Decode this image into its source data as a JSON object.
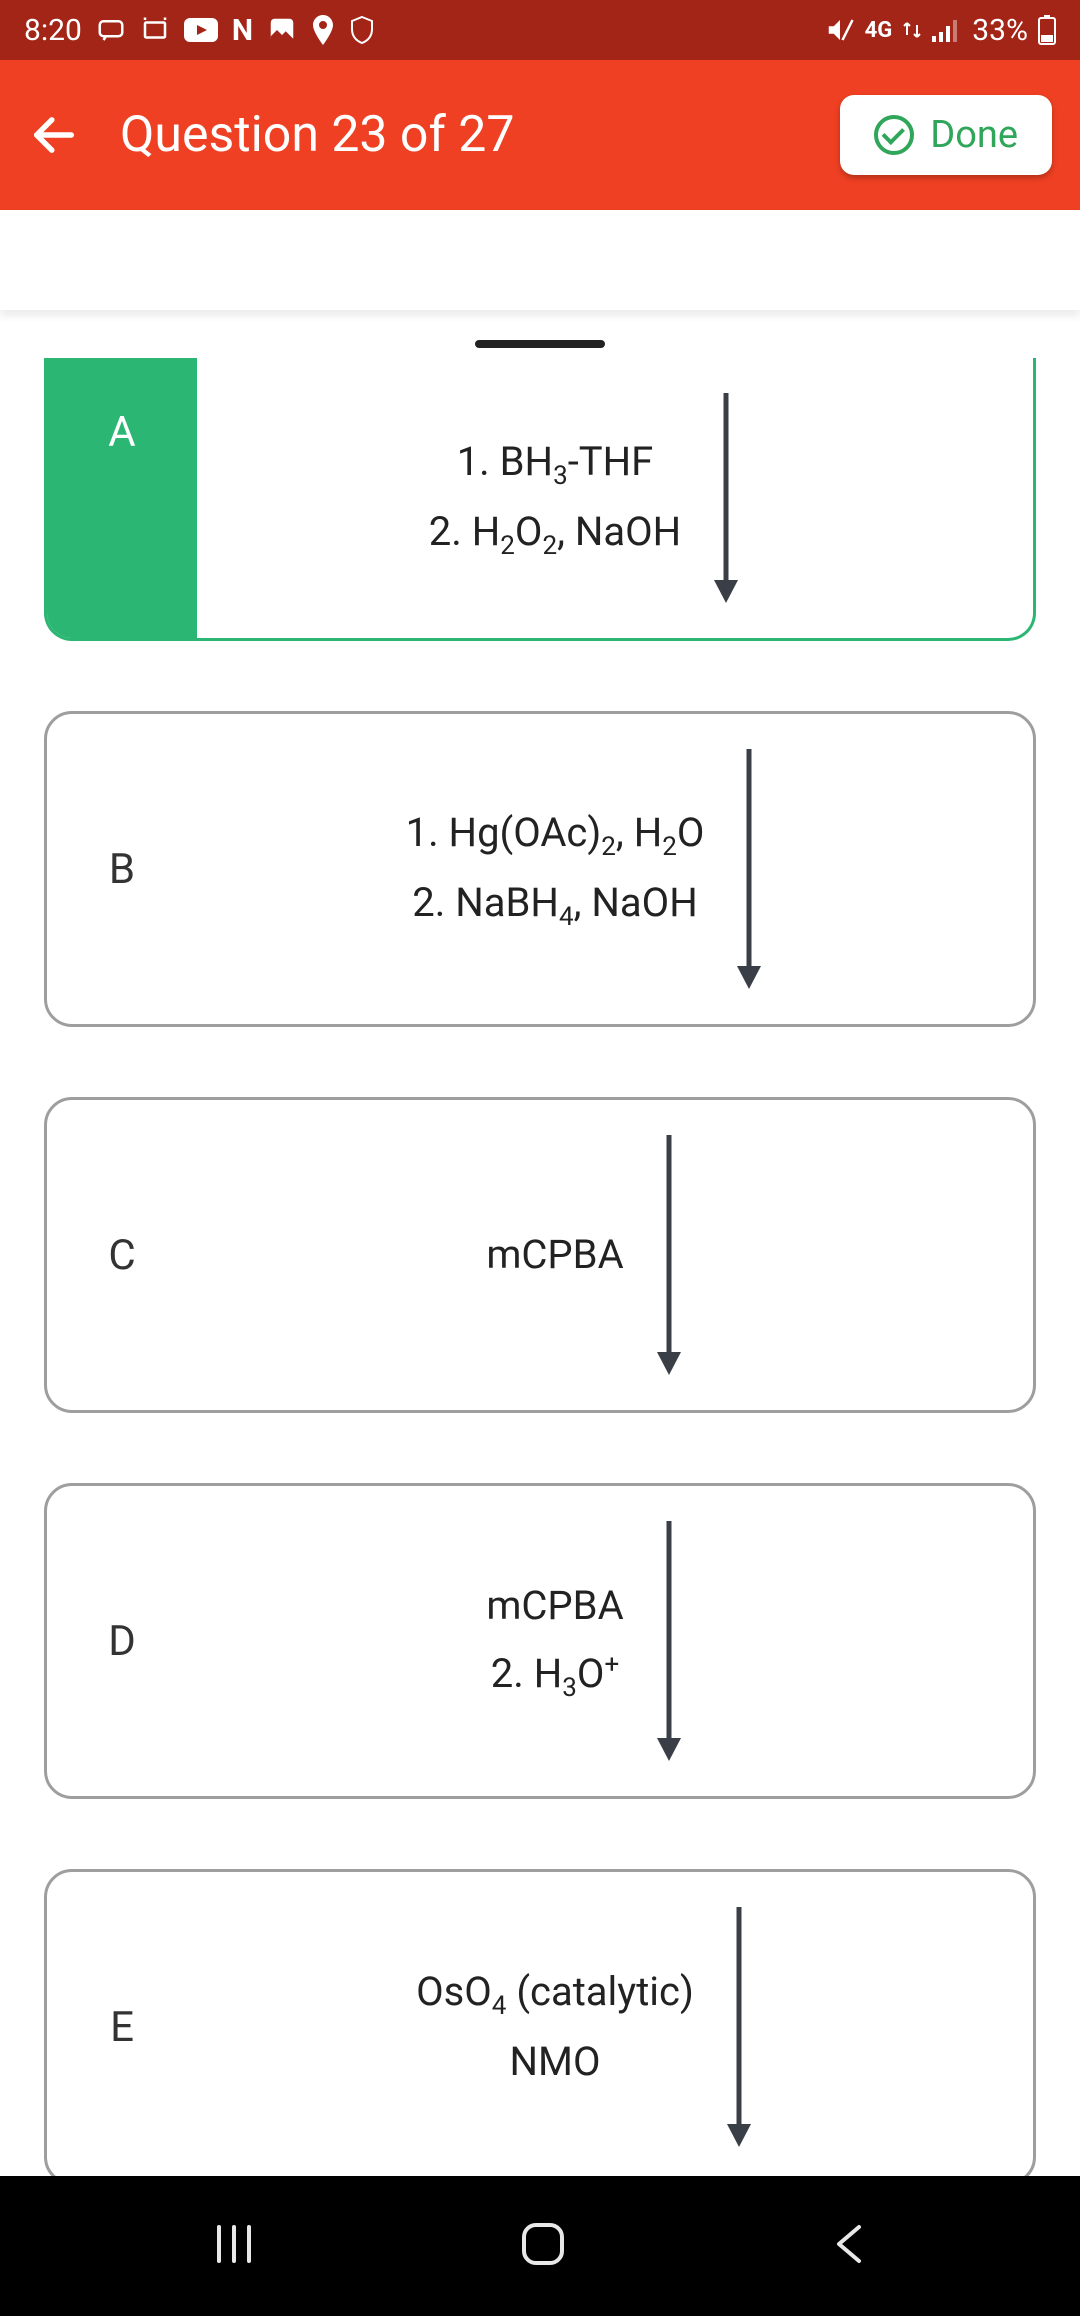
{
  "status": {
    "time": "8:20",
    "network_label": "4G",
    "battery_text": "33%"
  },
  "header": {
    "title": "Question 23 of 27",
    "done_label": "Done"
  },
  "options": [
    {
      "letter": "A",
      "selected": true,
      "first": true,
      "lines": [
        "1. BH<sub>3</sub>-THF",
        "2. H<sub>2</sub>O<sub>2</sub>, NaOH"
      ]
    },
    {
      "letter": "B",
      "selected": false,
      "first": false,
      "lines": [
        "1. Hg(OAc)<sub>2</sub>, H<sub>2</sub>O",
        "2. NaBH<sub>4</sub>, NaOH"
      ]
    },
    {
      "letter": "C",
      "selected": false,
      "first": false,
      "lines": [
        "mCPBA"
      ]
    },
    {
      "letter": "D",
      "selected": false,
      "first": false,
      "lines": [
        "mCPBA",
        "2. H<sub>3</sub>O<sup>+</sup>"
      ]
    },
    {
      "letter": "E",
      "selected": false,
      "first": false,
      "lines": [
        "OsO<sub>4</sub> (catalytic)",
        "NMO"
      ]
    }
  ],
  "colors": {
    "status_bg": "#a32518",
    "appbar_bg": "#ef4023",
    "selected_green": "#2bb673",
    "done_green": "#30a65a",
    "border_gray": "#9e9e9e",
    "arrow_color": "#3a3f47"
  }
}
